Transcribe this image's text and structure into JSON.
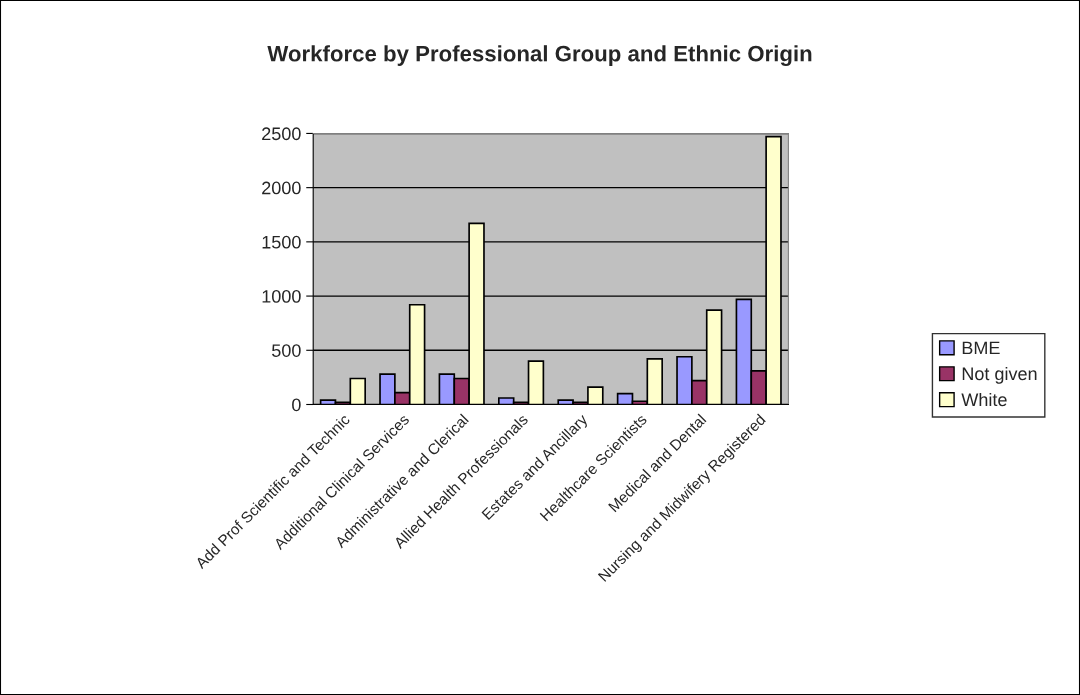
{
  "chart_data": {
    "type": "bar",
    "title": "Workforce by Professional Group and Ethnic Origin",
    "categories": [
      "Add Prof Scientific and Technic",
      "Additional Clinical Services",
      "Administrative and Clerical",
      "Allied Health Professionals",
      "Estates and Ancillary",
      "Healthcare Scientists",
      "Medical and Dental",
      "Nursing and Midwifery Registered"
    ],
    "series": [
      {
        "name": "BME",
        "color": "#9999ff",
        "values": [
          40,
          280,
          280,
          60,
          40,
          100,
          440,
          970
        ]
      },
      {
        "name": "Not given",
        "color": "#993366",
        "values": [
          20,
          110,
          240,
          20,
          20,
          30,
          220,
          310
        ]
      },
      {
        "name": "White",
        "color": "#ffffcc",
        "values": [
          240,
          920,
          1670,
          400,
          160,
          420,
          870,
          2470
        ]
      }
    ],
    "ylim": [
      0,
      2500
    ],
    "yticks": [
      0,
      500,
      1000,
      1500,
      2000,
      2500
    ],
    "grid": "y",
    "legend": "right"
  }
}
